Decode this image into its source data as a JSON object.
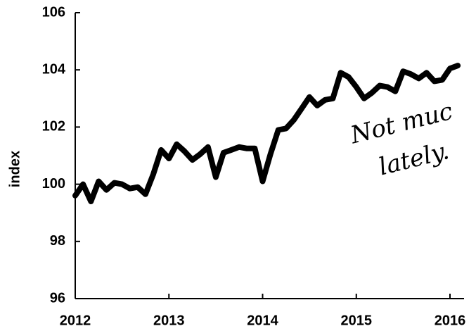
{
  "chart_data": {
    "type": "line",
    "ylabel": "index",
    "annotations": [
      "Not muc",
      "lately."
    ],
    "x": [
      2012,
      2012.083,
      2012.167,
      2012.25,
      2012.333,
      2012.417,
      2012.5,
      2012.583,
      2012.667,
      2012.75,
      2012.833,
      2012.917,
      2013,
      2013.083,
      2013.167,
      2013.25,
      2013.333,
      2013.417,
      2013.5,
      2013.583,
      2013.667,
      2013.75,
      2013.833,
      2013.917,
      2014,
      2014.083,
      2014.167,
      2014.25,
      2014.333,
      2014.417,
      2014.5,
      2014.583,
      2014.667,
      2014.75,
      2014.833,
      2014.917,
      2015,
      2015.083,
      2015.167,
      2015.25,
      2015.333,
      2015.417,
      2015.5,
      2015.583,
      2015.667,
      2015.75,
      2015.833,
      2015.917,
      2016,
      2016.083
    ],
    "series": [
      {
        "color": "#000000",
        "values": [
          99.6,
          100.0,
          99.4,
          100.1,
          99.8,
          100.05,
          100.0,
          99.85,
          99.9,
          99.65,
          100.35,
          101.2,
          100.9,
          101.4,
          101.15,
          100.85,
          101.05,
          101.3,
          100.25,
          101.1,
          101.2,
          101.3,
          101.25,
          101.25,
          100.1,
          101.05,
          101.9,
          101.95,
          102.25,
          102.65,
          103.05,
          102.75,
          102.95,
          103.0,
          103.9,
          103.75,
          103.4,
          103.0,
          103.2,
          103.45,
          103.4,
          103.25,
          103.95,
          103.85,
          103.7,
          103.9,
          103.6,
          103.65,
          104.05,
          104.15
        ]
      }
    ],
    "xlim": [
      2012,
      2016.15
    ],
    "xticks": [
      2012,
      2013,
      2014,
      2015,
      2016
    ],
    "ylim": [
      96,
      106
    ],
    "yticks": [
      96,
      98,
      100,
      102,
      104,
      106
    ]
  }
}
